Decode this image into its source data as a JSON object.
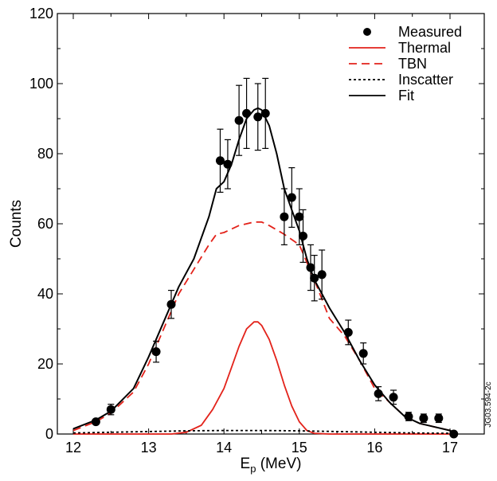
{
  "chart_data": {
    "type": "scatter",
    "xlabel": "E",
    "xlabel_sub": "p",
    "xlabel_unit": " (MeV)",
    "ylabel": "Counts",
    "xlim": [
      12,
      17.5
    ],
    "ylim": [
      0,
      120
    ],
    "xticks": [
      12,
      13,
      14,
      15,
      16,
      17
    ],
    "yticks": [
      0,
      20,
      40,
      60,
      80,
      100,
      120
    ],
    "side_note": "JG03.594-2c",
    "legend_position": "top-right",
    "series": [
      {
        "name": "Measured",
        "style": "points",
        "color": "#000000",
        "points": [
          {
            "x": 12.3,
            "y": 3.5,
            "err": 0
          },
          {
            "x": 12.5,
            "y": 7,
            "err": 1.5
          },
          {
            "x": 13.1,
            "y": 23.5,
            "err": 3
          },
          {
            "x": 13.3,
            "y": 37,
            "err": 4
          },
          {
            "x": 13.95,
            "y": 78,
            "err": 9
          },
          {
            "x": 14.05,
            "y": 77,
            "err": 7
          },
          {
            "x": 14.2,
            "y": 89.5,
            "err": 10
          },
          {
            "x": 14.3,
            "y": 91.5,
            "err": 10
          },
          {
            "x": 14.45,
            "y": 90.5,
            "err": 9.5
          },
          {
            "x": 14.55,
            "y": 91.5,
            "err": 10
          },
          {
            "x": 14.8,
            "y": 62,
            "err": 8
          },
          {
            "x": 14.9,
            "y": 67.5,
            "err": 8.5
          },
          {
            "x": 15.0,
            "y": 62,
            "err": 8
          },
          {
            "x": 15.05,
            "y": 56.5,
            "err": 7.5
          },
          {
            "x": 15.15,
            "y": 47.5,
            "err": 6.5
          },
          {
            "x": 15.2,
            "y": 44.5,
            "err": 6.5
          },
          {
            "x": 15.3,
            "y": 45.5,
            "err": 7
          },
          {
            "x": 15.65,
            "y": 29,
            "err": 3.5
          },
          {
            "x": 15.85,
            "y": 23,
            "err": 3
          },
          {
            "x": 16.05,
            "y": 11.5,
            "err": 2
          },
          {
            "x": 16.25,
            "y": 10.5,
            "err": 2
          },
          {
            "x": 16.45,
            "y": 5,
            "err": 1.2
          },
          {
            "x": 16.65,
            "y": 4.5,
            "err": 1.2
          },
          {
            "x": 16.85,
            "y": 4.5,
            "err": 1.2
          },
          {
            "x": 17.05,
            "y": 0,
            "err": 0
          }
        ]
      },
      {
        "name": "Thermal",
        "style": "line",
        "color": "#e3231b",
        "x": [
          12.0,
          13.3,
          13.5,
          13.7,
          13.85,
          14.0,
          14.1,
          14.2,
          14.3,
          14.4,
          14.45,
          14.5,
          14.6,
          14.7,
          14.8,
          14.9,
          15.0,
          15.1,
          15.2,
          15.4,
          17.1
        ],
        "y": [
          0,
          0,
          0.5,
          2.5,
          7,
          13,
          19,
          25,
          30,
          32,
          32,
          31,
          27,
          21,
          14,
          8,
          3.5,
          1,
          0.2,
          0,
          0
        ]
      },
      {
        "name": "TBN",
        "style": "dashed",
        "color": "#e3231b",
        "x": [
          12.0,
          12.3,
          12.5,
          12.8,
          13.0,
          13.2,
          13.4,
          13.6,
          13.8,
          13.9,
          14.0,
          14.2,
          14.4,
          14.5,
          14.6,
          14.8,
          15.0,
          15.2,
          15.4,
          15.6,
          15.8,
          16.0,
          16.2,
          16.4,
          16.6,
          16.8,
          17.0
        ],
        "y": [
          1,
          3.5,
          6,
          12,
          20,
          30,
          40,
          47,
          54,
          57,
          57.5,
          59.5,
          60.5,
          60.5,
          59.5,
          57,
          54,
          44,
          33,
          28,
          21,
          13,
          9,
          5,
          3,
          2,
          1
        ]
      },
      {
        "name": "Inscatter",
        "style": "dotted",
        "color": "#000000",
        "x": [
          12.0,
          12.5,
          13.0,
          13.5,
          14.0,
          14.5,
          15.0,
          15.5,
          16.0,
          16.5,
          17.0
        ],
        "y": [
          0.3,
          0.5,
          0.7,
          0.9,
          1.0,
          1.0,
          0.9,
          0.7,
          0.5,
          0.3,
          0.2
        ]
      },
      {
        "name": "Fit",
        "style": "line",
        "color": "#000000",
        "x": [
          12.0,
          12.3,
          12.5,
          12.8,
          13.0,
          13.2,
          13.4,
          13.6,
          13.8,
          13.9,
          14.0,
          14.1,
          14.2,
          14.3,
          14.4,
          14.45,
          14.5,
          14.6,
          14.7,
          14.8,
          14.9,
          15.0,
          15.1,
          15.2,
          15.3,
          15.4,
          15.6,
          15.8,
          16.0,
          16.2,
          16.4,
          16.6,
          16.8,
          17.0,
          17.05
        ],
        "y": [
          1.5,
          4,
          6.5,
          13,
          22,
          32,
          42,
          50,
          62,
          70,
          72,
          77,
          84,
          90,
          92.5,
          93,
          92.5,
          88,
          80,
          70,
          64,
          58,
          50,
          44,
          40,
          36,
          29,
          21,
          14,
          9,
          5,
          3,
          2,
          1,
          0.5
        ]
      }
    ]
  }
}
